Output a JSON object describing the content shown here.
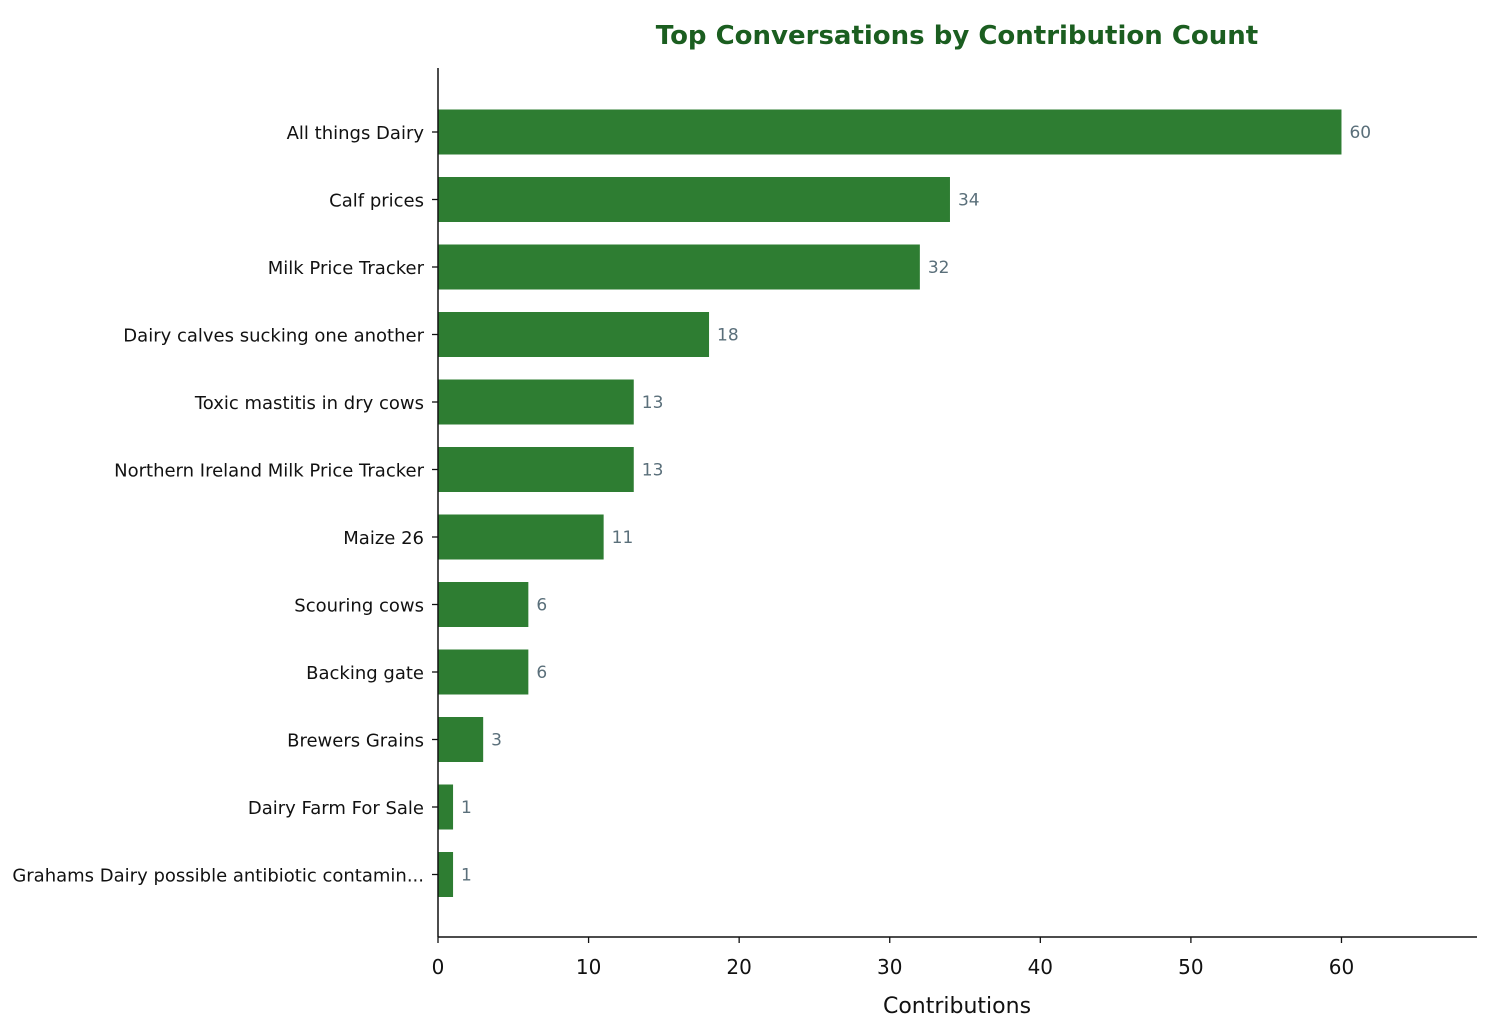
{
  "chart_data": {
    "type": "bar",
    "orientation": "horizontal",
    "title": "Top Conversations by Contribution Count",
    "xlabel": "Contributions",
    "ylabel": "",
    "categories": [
      "All things Dairy",
      "Calf prices",
      "Milk Price Tracker",
      "Dairy calves sucking one another",
      "Toxic mastitis in dry cows",
      "Northern Ireland Milk Price Tracker",
      "Maize 26",
      "Scouring cows",
      "Backing gate",
      "Brewers Grains",
      "Dairy Farm For Sale",
      "Grahams Dairy possible antibiotic contamin..."
    ],
    "values": [
      60,
      34,
      32,
      18,
      13,
      13,
      11,
      6,
      6,
      3,
      1,
      1
    ],
    "xlim": [
      0,
      69
    ],
    "xticks": [
      0,
      10,
      20,
      30,
      40,
      50,
      60
    ],
    "grid": false,
    "legend": "none",
    "data_labels": true
  },
  "colors": {
    "bar": "#2e7d32",
    "title": "#1b5e20",
    "data_label": "#5a6f7a",
    "axis": "#111111"
  }
}
